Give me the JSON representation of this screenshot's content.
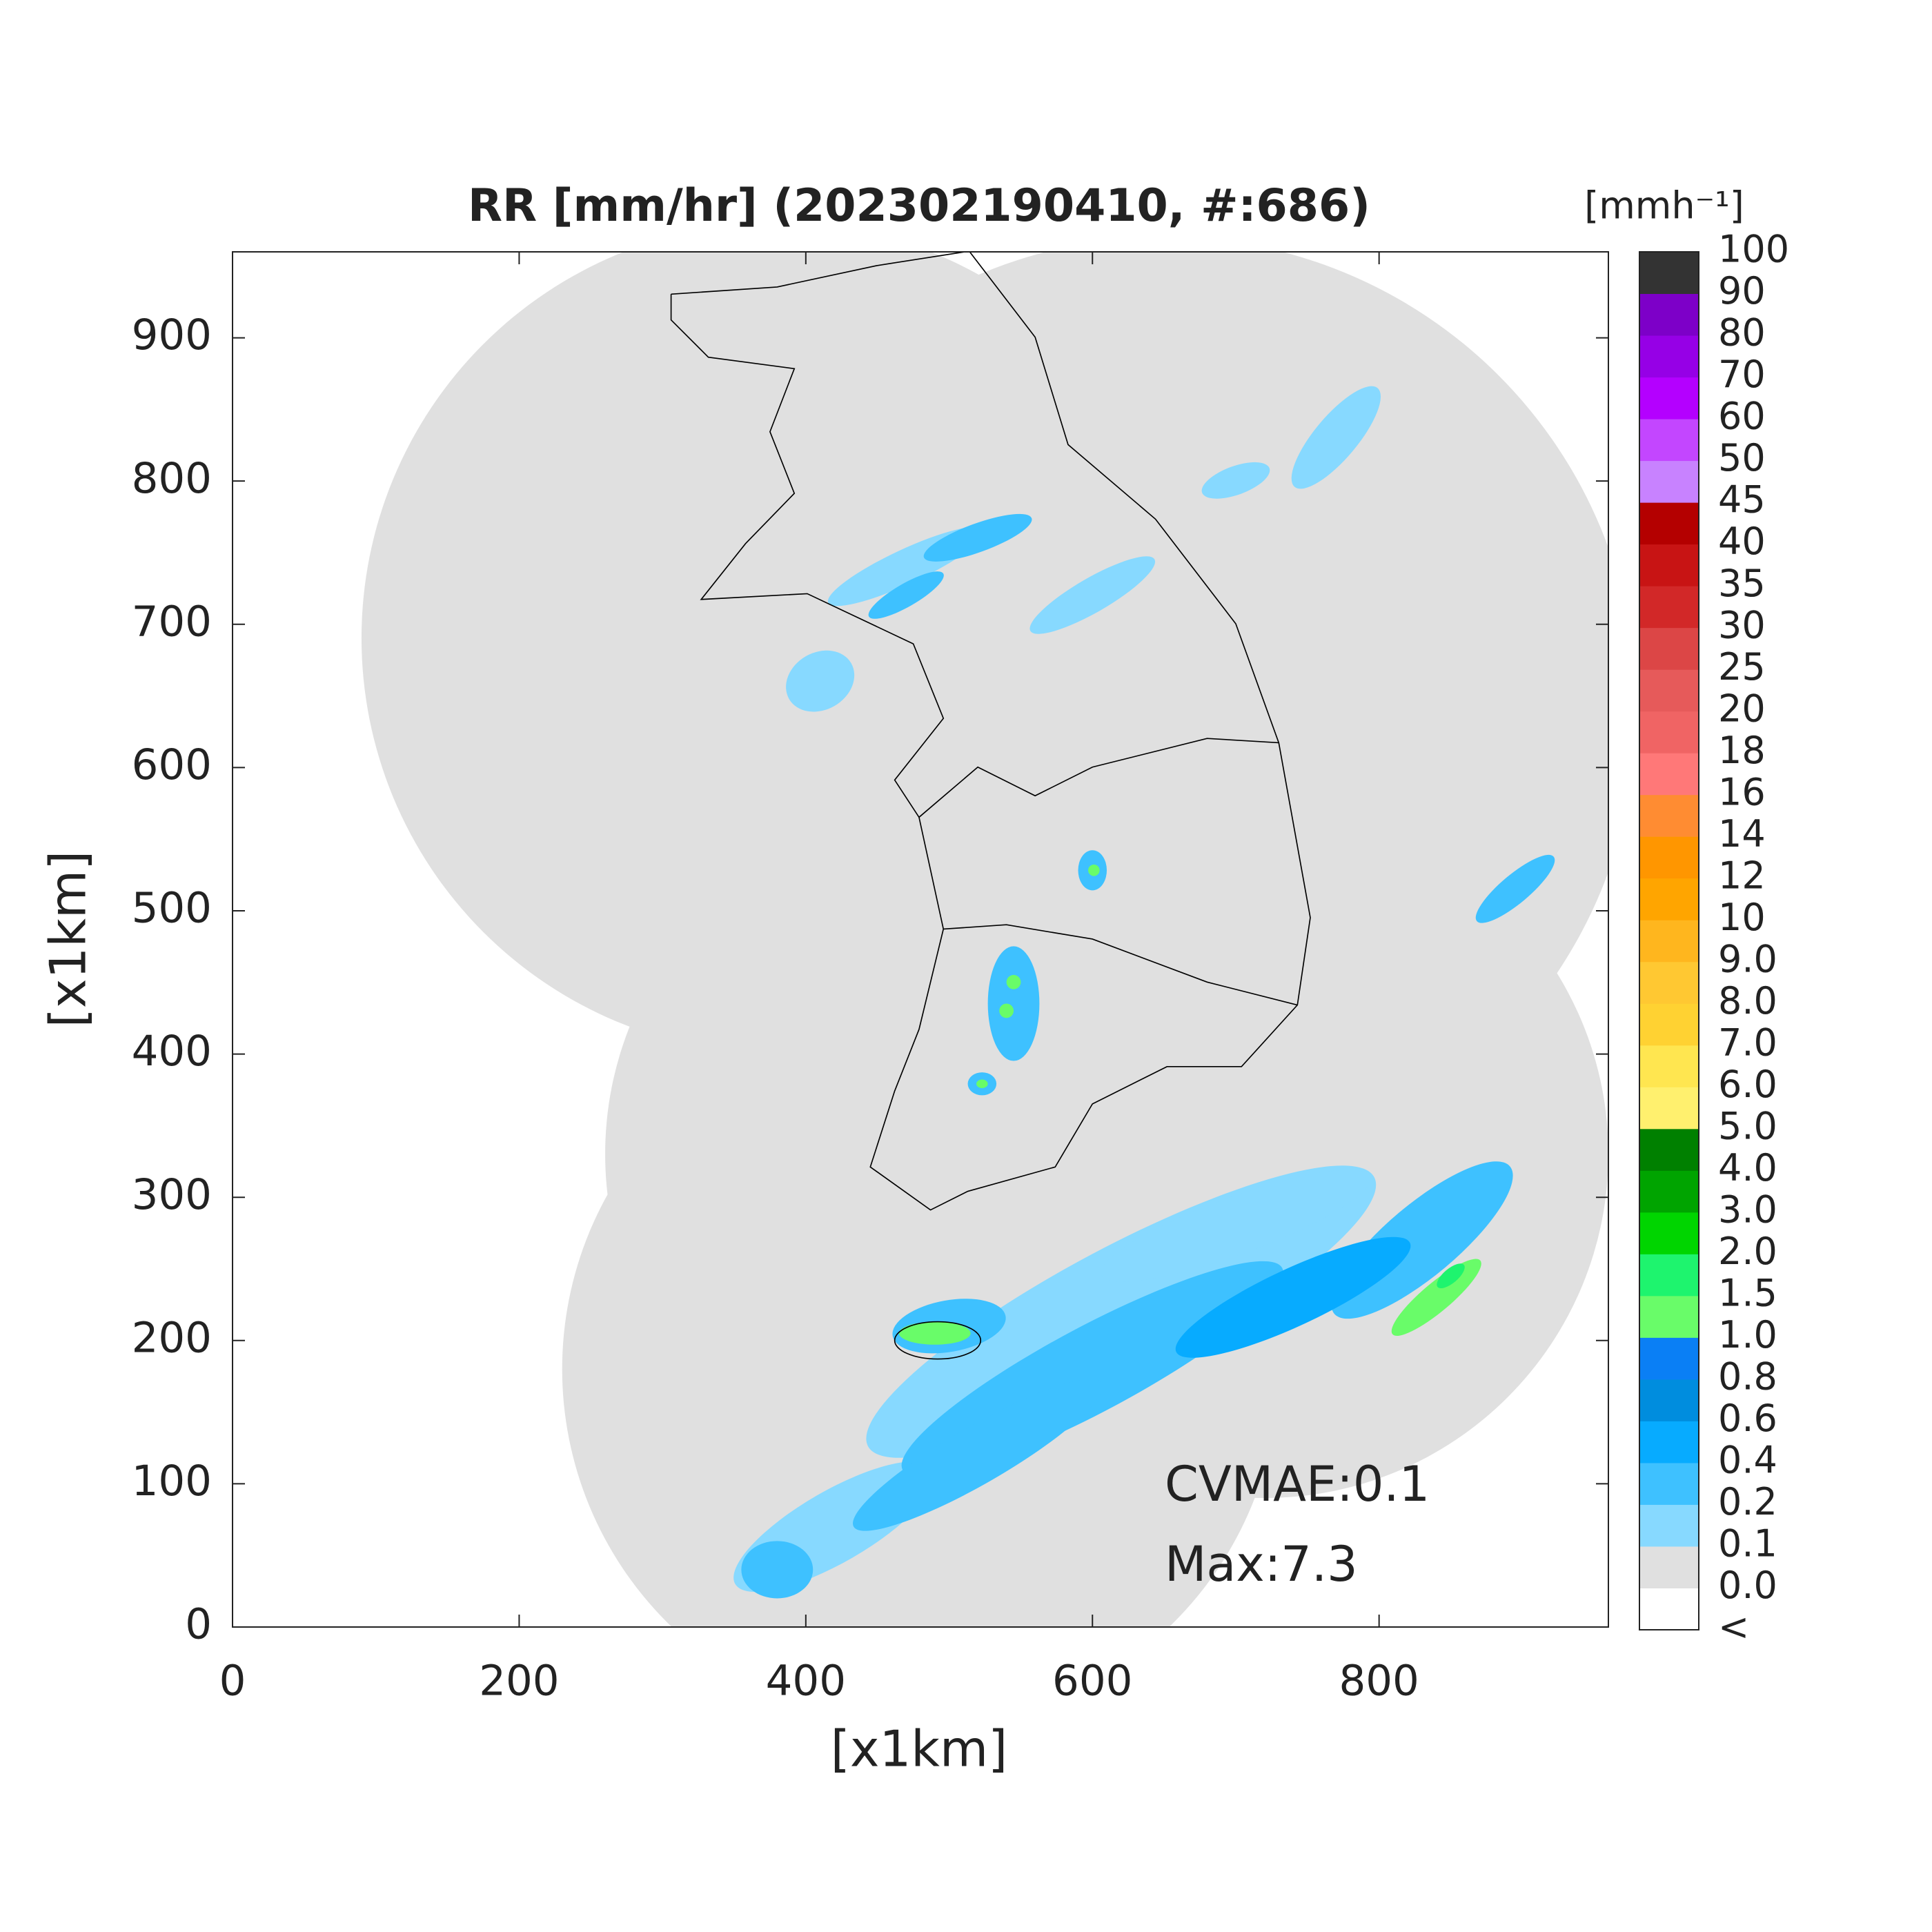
{
  "chart_data": {
    "type": "map",
    "title": "RR [mm/hr] (202302190410, #:686)",
    "xlabel": "[x1km]",
    "ylabel": "[x1km]",
    "xlim": [
      0,
      960
    ],
    "ylim": [
      0,
      960
    ],
    "xticks": [
      0,
      200,
      400,
      600,
      800
    ],
    "yticks": [
      0,
      100,
      200,
      300,
      400,
      500,
      600,
      700,
      800,
      900
    ],
    "annotations": [
      "CVMAE:0.1",
      "Max:7.3"
    ],
    "colorbar": {
      "label": "[mmh⁻¹]",
      "tick_labels": [
        "<",
        "0.0",
        "0.1",
        "0.2",
        "0.4",
        "0.6",
        "0.8",
        "1.0",
        "1.5",
        "2.0",
        "3.0",
        "4.0",
        "5.0",
        "6.0",
        "7.0",
        "8.0",
        "9.0",
        "10",
        "12",
        "14",
        "16",
        "18",
        "20",
        "25",
        "30",
        "35",
        "40",
        "45",
        "50",
        "60",
        "70",
        "80",
        "90",
        "100"
      ],
      "colors": [
        "#ffffff",
        "#e0e0e0",
        "#87d9ff",
        "#3ec1ff",
        "#07abff",
        "#008dde",
        "#0a7ff5",
        "#69fc69",
        "#1ef46e",
        "#00d500",
        "#00a400",
        "#008000",
        "#fff06e",
        "#ffe650",
        "#ffd232",
        "#ffc832",
        "#ffb61e",
        "#ffa500",
        "#ff9600",
        "#ff8c32",
        "#ff7878",
        "#f06464",
        "#e65a5a",
        "#dc4646",
        "#d22828",
        "#c81414",
        "#b40000",
        "#c882ff",
        "#c346ff",
        "#b400ff",
        "#9600e6",
        "#7d00c8",
        "#333333"
      ]
    }
  }
}
